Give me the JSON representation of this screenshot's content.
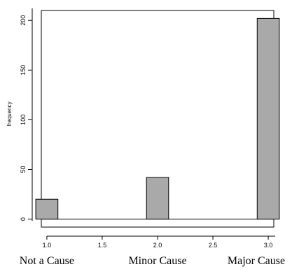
{
  "chart_data": {
    "type": "bar",
    "title": "",
    "xlabel": "",
    "ylabel": "frequency",
    "x": [
      1.0,
      2.0,
      3.0
    ],
    "values": [
      20,
      42,
      202
    ],
    "bar_halfwidth": 0.1,
    "xlim": [
      0.95,
      3.05
    ],
    "ylim": [
      -8,
      210
    ],
    "x_ticks": [
      1.0,
      1.5,
      2.0,
      2.5,
      3.0
    ],
    "x_tick_labels": [
      "1.0",
      "1.5",
      "2.0",
      "2.5",
      "3.0"
    ],
    "y_ticks": [
      0,
      50,
      100,
      150,
      200
    ],
    "y_tick_labels": [
      "0",
      "50",
      "100",
      "150",
      "200"
    ],
    "categories": [
      "Not a Cause",
      "Minor Cause",
      "Major Cause"
    ],
    "grid": false,
    "bar_color": "#a9a9a9",
    "edge_color": "#000000"
  }
}
